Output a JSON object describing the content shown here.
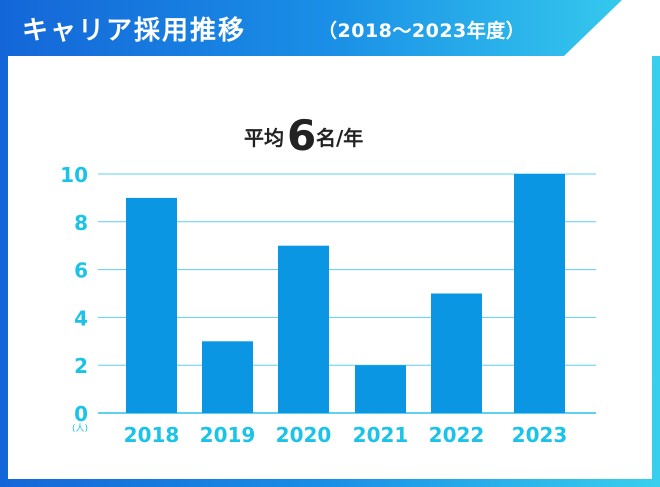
{
  "header": {
    "title": "キャリア採用推移",
    "subtitle": "（2018～2023年度）"
  },
  "average": {
    "prefix": "平均",
    "value": "6",
    "suffix": "名/年"
  },
  "colors": {
    "bar": "#0b96e4",
    "axis_text": "#1cc3e8",
    "grid": "#5fd0ee",
    "frame_start": "#1466d8",
    "frame_end": "#38d0ee",
    "title_text": "#222222"
  },
  "chart_data": {
    "type": "bar",
    "title": "平均6名/年",
    "categories": [
      "2018",
      "2019",
      "2020",
      "2021",
      "2022",
      "2023"
    ],
    "values": [
      9,
      3,
      7,
      2,
      5,
      10
    ],
    "xlabel": "",
    "ylabel": "",
    "y_unit": "(人)",
    "ylim": [
      0,
      10
    ],
    "yticks": [
      0,
      2,
      4,
      6,
      8,
      10
    ],
    "grid": true,
    "legend": "none"
  }
}
